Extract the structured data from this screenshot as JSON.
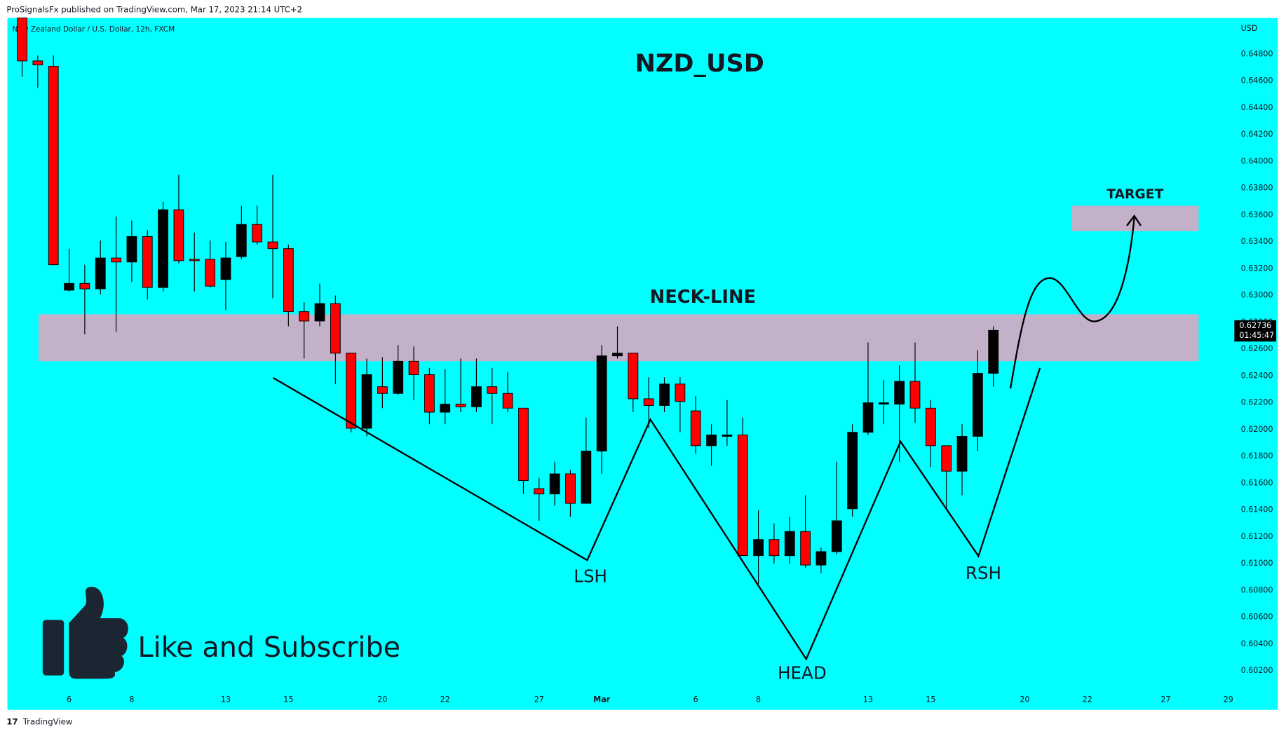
{
  "header": {
    "publisher": "ProSignalsFx published on TradingView.com, Mar 17, 2023 21:14 UTC+2",
    "symbol": "New Zealand Dollar / U.S. Dollar, 12h, FXCM",
    "currency": "USD"
  },
  "chart_data": {
    "type": "candlestick",
    "title": "NZD_USD",
    "open": [
      0.6507,
      0.6475,
      0.6471,
      0.6304,
      0.6309,
      0.6305,
      0.6328,
      0.6325,
      0.6344,
      0.6306,
      0.6364,
      0.6327,
      0.6327,
      0.6312,
      0.6329,
      0.6353,
      0.634,
      0.6335,
      0.6288,
      0.6281,
      0.6294,
      0.6257,
      0.6201,
      0.6232,
      0.6227,
      0.6251,
      0.6241,
      0.6213,
      0.6219,
      0.6217,
      0.6232,
      0.6227,
      0.6216,
      0.6156,
      0.6152,
      0.6167,
      0.6145,
      0.6184,
      0.6255,
      0.6257,
      0.6223,
      0.6218,
      0.6234,
      0.6214,
      0.6188,
      0.6195,
      0.6196,
      0.6106,
      0.6118,
      0.6106,
      0.6124,
      0.6099,
      0.6109,
      0.6141,
      0.6198,
      0.6219,
      0.6219,
      0.6236,
      0.6216,
      0.6188,
      0.6169,
      0.6195,
      0.6242
    ],
    "high": [
      0.6507,
      0.6479,
      0.6479,
      0.6335,
      0.6323,
      0.6341,
      0.6359,
      0.6356,
      0.6349,
      0.637,
      0.639,
      0.6347,
      0.6341,
      0.634,
      0.6367,
      0.6367,
      0.639,
      0.6338,
      0.6295,
      0.6309,
      0.63,
      0.6257,
      0.6253,
      0.6254,
      0.6263,
      0.6262,
      0.6246,
      0.6245,
      0.6253,
      0.6253,
      0.6246,
      0.6243,
      0.6216,
      0.6164,
      0.6176,
      0.617,
      0.6209,
      0.6263,
      0.6277,
      0.6257,
      0.6239,
      0.6239,
      0.6239,
      0.6225,
      0.6204,
      0.6222,
      0.6209,
      0.614,
      0.613,
      0.6135,
      0.6151,
      0.6112,
      0.6176,
      0.6204,
      0.6265,
      0.6237,
      0.6248,
      0.6265,
      0.6222,
      0.6188,
      0.6204,
      0.6259,
      0.6277
    ],
    "low": [
      0.6463,
      0.6455,
      0.6323,
      0.6303,
      0.6271,
      0.6301,
      0.6273,
      0.631,
      0.6297,
      0.6303,
      0.6324,
      0.6303,
      0.6306,
      0.6289,
      0.6327,
      0.6338,
      0.6298,
      0.6277,
      0.6253,
      0.6277,
      0.6234,
      0.6198,
      0.6195,
      0.6216,
      0.6226,
      0.6222,
      0.6204,
      0.6204,
      0.6213,
      0.6213,
      0.6204,
      0.6213,
      0.6152,
      0.6132,
      0.6143,
      0.6135,
      0.6145,
      0.6167,
      0.6253,
      0.6213,
      0.6201,
      0.6213,
      0.6198,
      0.6182,
      0.6173,
      0.6188,
      0.6106,
      0.6085,
      0.61,
      0.61,
      0.6097,
      0.6093,
      0.6107,
      0.6135,
      0.6196,
      0.6204,
      0.6176,
      0.6205,
      0.6172,
      0.614,
      0.6151,
      0.6184,
      0.6232
    ],
    "close": [
      0.6475,
      0.6472,
      0.6323,
      0.6309,
      0.6305,
      0.6328,
      0.6325,
      0.6344,
      0.6306,
      0.6364,
      0.6326,
      0.6326,
      0.6307,
      0.6328,
      0.6353,
      0.634,
      0.6335,
      0.6288,
      0.6281,
      0.6294,
      0.6257,
      0.6201,
      0.6241,
      0.6227,
      0.6251,
      0.6241,
      0.6213,
      0.6219,
      0.6217,
      0.6232,
      0.6227,
      0.6216,
      0.6162,
      0.6152,
      0.6167,
      0.6145,
      0.6184,
      0.6255,
      0.6257,
      0.6223,
      0.6218,
      0.6234,
      0.6221,
      0.6188,
      0.6196,
      0.6196,
      0.6106,
      0.6118,
      0.6106,
      0.6124,
      0.6099,
      0.6109,
      0.6132,
      0.6198,
      0.622,
      0.622,
      0.6236,
      0.6216,
      0.6188,
      0.6169,
      0.6195,
      0.6242,
      0.6274
    ],
    "up_color": "#000000",
    "down_color": "#ff0000",
    "xlim": [
      -0.94,
      77.38
    ],
    "xticks": [
      {
        "value": 3,
        "label": "6"
      },
      {
        "value": 7,
        "label": "8"
      },
      {
        "value": 13,
        "label": "13"
      },
      {
        "value": 17,
        "label": "15"
      },
      {
        "value": 23,
        "label": "20"
      },
      {
        "value": 27,
        "label": "22"
      },
      {
        "value": 33,
        "label": "27"
      },
      {
        "value": 37,
        "label": "Mar"
      },
      {
        "value": 43,
        "label": "6"
      },
      {
        "value": 47,
        "label": "8"
      },
      {
        "value": 54,
        "label": "13"
      },
      {
        "value": 58,
        "label": "15"
      },
      {
        "value": 64,
        "label": "20"
      },
      {
        "value": 68,
        "label": "22"
      },
      {
        "value": 73,
        "label": "27"
      },
      {
        "value": 77,
        "label": "29"
      }
    ],
    "ylim": [
      0.5991,
      0.6507
    ],
    "yticks": [
      {
        "value": 0.602,
        "label": "0.60200"
      },
      {
        "value": 0.604,
        "label": "0.60400"
      },
      {
        "value": 0.606,
        "label": "0.60600"
      },
      {
        "value": 0.608,
        "label": "0.60800"
      },
      {
        "value": 0.61,
        "label": "0.61000"
      },
      {
        "value": 0.612,
        "label": "0.61200"
      },
      {
        "value": 0.614,
        "label": "0.61400"
      },
      {
        "value": 0.616,
        "label": "0.61600"
      },
      {
        "value": 0.618,
        "label": "0.61800"
      },
      {
        "value": 0.62,
        "label": "0.62000"
      },
      {
        "value": 0.622,
        "label": "0.62200"
      },
      {
        "value": 0.624,
        "label": "0.62400"
      },
      {
        "value": 0.626,
        "label": "0.62600"
      },
      {
        "value": 0.628,
        "label": "0.62800"
      },
      {
        "value": 0.63,
        "label": "0.63000"
      },
      {
        "value": 0.632,
        "label": "0.63200"
      },
      {
        "value": 0.634,
        "label": "0.63400"
      },
      {
        "value": 0.636,
        "label": "0.63600"
      },
      {
        "value": 0.638,
        "label": "0.63800"
      },
      {
        "value": 0.64,
        "label": "0.64000"
      },
      {
        "value": 0.642,
        "label": "0.64200"
      },
      {
        "value": 0.644,
        "label": "0.64400"
      },
      {
        "value": 0.646,
        "label": "0.64600"
      },
      {
        "value": 0.648,
        "label": "0.64800"
      }
    ],
    "last_price": {
      "value": 0.62736,
      "countdown": "01:45:47"
    },
    "zones": [
      {
        "label": "NECK-LINE",
        "x": [
          1.05,
          75.1
        ],
        "y": [
          0.6251,
          0.6286
        ],
        "color": "#d8a8c4"
      },
      {
        "label": "TARGET",
        "x": [
          67.0,
          75.1
        ],
        "y": [
          0.6348,
          0.6367
        ],
        "color": "#d8a8c4"
      }
    ],
    "pattern_labels": [
      "LSH",
      "HEAD",
      "RSH"
    ]
  },
  "overlay": {
    "text": "Like and Subscribe"
  },
  "footer": {
    "brand": "TradingView"
  }
}
